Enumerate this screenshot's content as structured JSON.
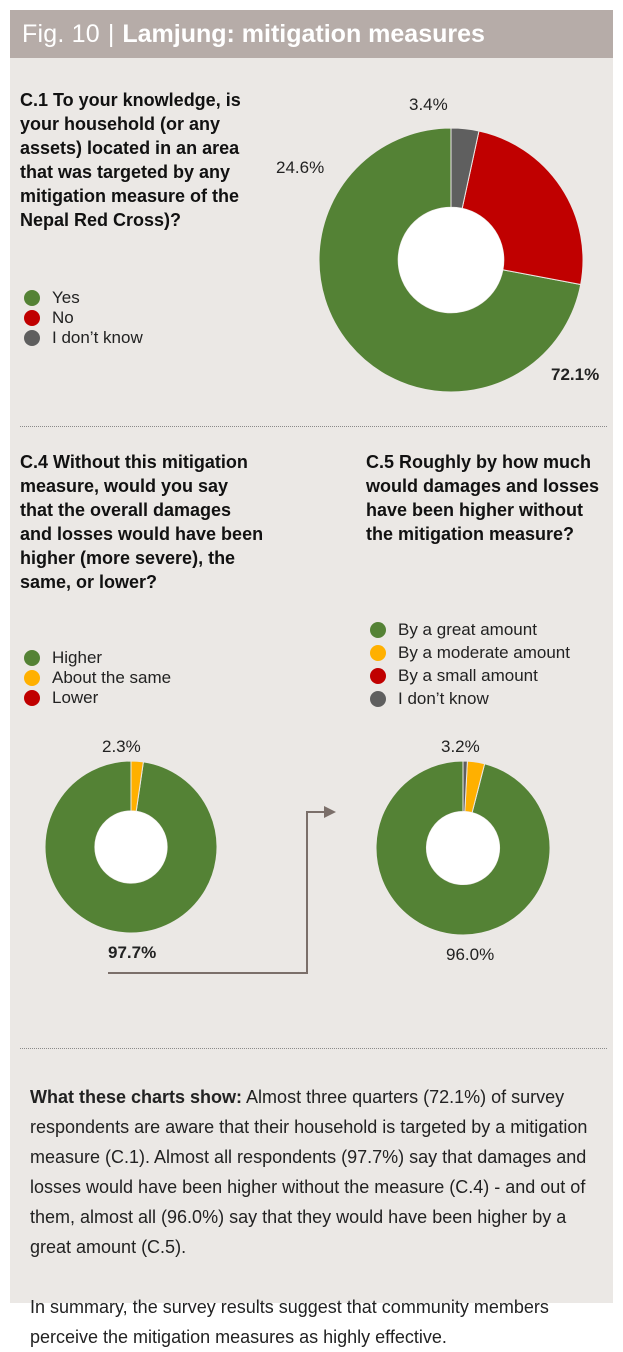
{
  "header": {
    "fig_label": "Fig. 10",
    "separator": "|",
    "title": "Lamjung: mitigation measures"
  },
  "colors": {
    "green": "#548235",
    "red": "#c00000",
    "grey": "#5f5f5f",
    "orange": "#ffb000",
    "panel": "#ebe8e5",
    "header": "#b6aca8"
  },
  "chart_data": [
    {
      "id": "c1",
      "type": "pie",
      "donut": true,
      "question": "C.1 To your knowledge, is your household (or any assets) located in an area that was targeted by any mitigation measure of the Nepal Red Cross)?",
      "legend": [
        "Yes",
        "No",
        "I don’t know"
      ],
      "slices": [
        {
          "label": "Yes",
          "value": 72.1,
          "color": "#548235",
          "display": "72.1%"
        },
        {
          "label": "No",
          "value": 24.6,
          "color": "#c00000",
          "display": "24.6%"
        },
        {
          "label": "I don’t know",
          "value": 3.4,
          "color": "#5f5f5f",
          "display": "3.4%"
        }
      ]
    },
    {
      "id": "c4",
      "type": "pie",
      "donut": true,
      "question": "C.4 Without this mitigation measure, would you say that the overall damages and losses would have been higher (more severe), the same, or lower?",
      "legend": [
        "Higher",
        "About the same",
        "Lower"
      ],
      "slices": [
        {
          "label": "Higher",
          "value": 97.7,
          "color": "#548235",
          "display": "97.7%"
        },
        {
          "label": "About the same",
          "value": 2.3,
          "color": "#ffb000",
          "display": "2.3%"
        }
      ]
    },
    {
      "id": "c5",
      "type": "pie",
      "donut": true,
      "question": "C.5 Roughly by how much would damages and losses have been higher without the mitigation measure?",
      "legend": [
        "By a great amount",
        "By a moderate amount",
        "By a small amount",
        "I don’t know"
      ],
      "slices": [
        {
          "label": "By a great amount",
          "value": 96.0,
          "color": "#548235",
          "display": "96.0%"
        },
        {
          "label": "By a moderate amount",
          "value": 3.2,
          "color": "#ffb000",
          "display": "3.2%"
        },
        {
          "label": "I don’t know",
          "value": 0.8,
          "color": "#5f5f5f",
          "display": ""
        }
      ]
    }
  ],
  "summary": {
    "lead": "What these charts show:",
    "para1": " Almost three quarters (72.1%) of survey respondents are aware that their household is targeted by a mitigation measure (C.1).  Almost all respondents (97.7%) say that damages and losses would have been higher without the measure (C.4) - and out of them, almost all (96.0%) say that they would have been higher by a great amount (C.5).",
    "para2": "In summary, the survey results suggest that community members perceive the mitigation measures as highly effective."
  }
}
